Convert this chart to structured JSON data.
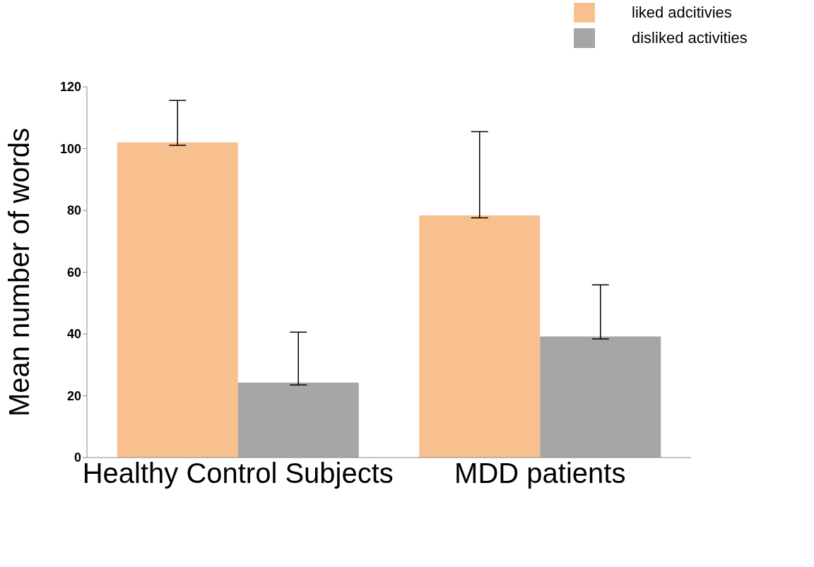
{
  "chart_data": {
    "type": "bar",
    "ylabel": "Mean number of words",
    "categories": [
      "Healthy Control Subjects",
      "MDD patients"
    ],
    "series": [
      {
        "name": "liked adcitivies",
        "color": "#f9c08f",
        "values": [
          102,
          78.4
        ],
        "errors": [
          [
            101.1,
            115.6
          ],
          [
            77.6,
            105.5
          ]
        ]
      },
      {
        "name": "disliked activities",
        "color": "#a6a6a6",
        "values": [
          24.3,
          39.2
        ],
        "errors": [
          [
            23.5,
            40.6
          ],
          [
            38.4,
            55.9
          ]
        ]
      }
    ],
    "ylim": [
      0,
      120
    ],
    "yticks": [
      0,
      20,
      40,
      60,
      80,
      100,
      120
    ],
    "grid": false,
    "legend": "top right"
  }
}
